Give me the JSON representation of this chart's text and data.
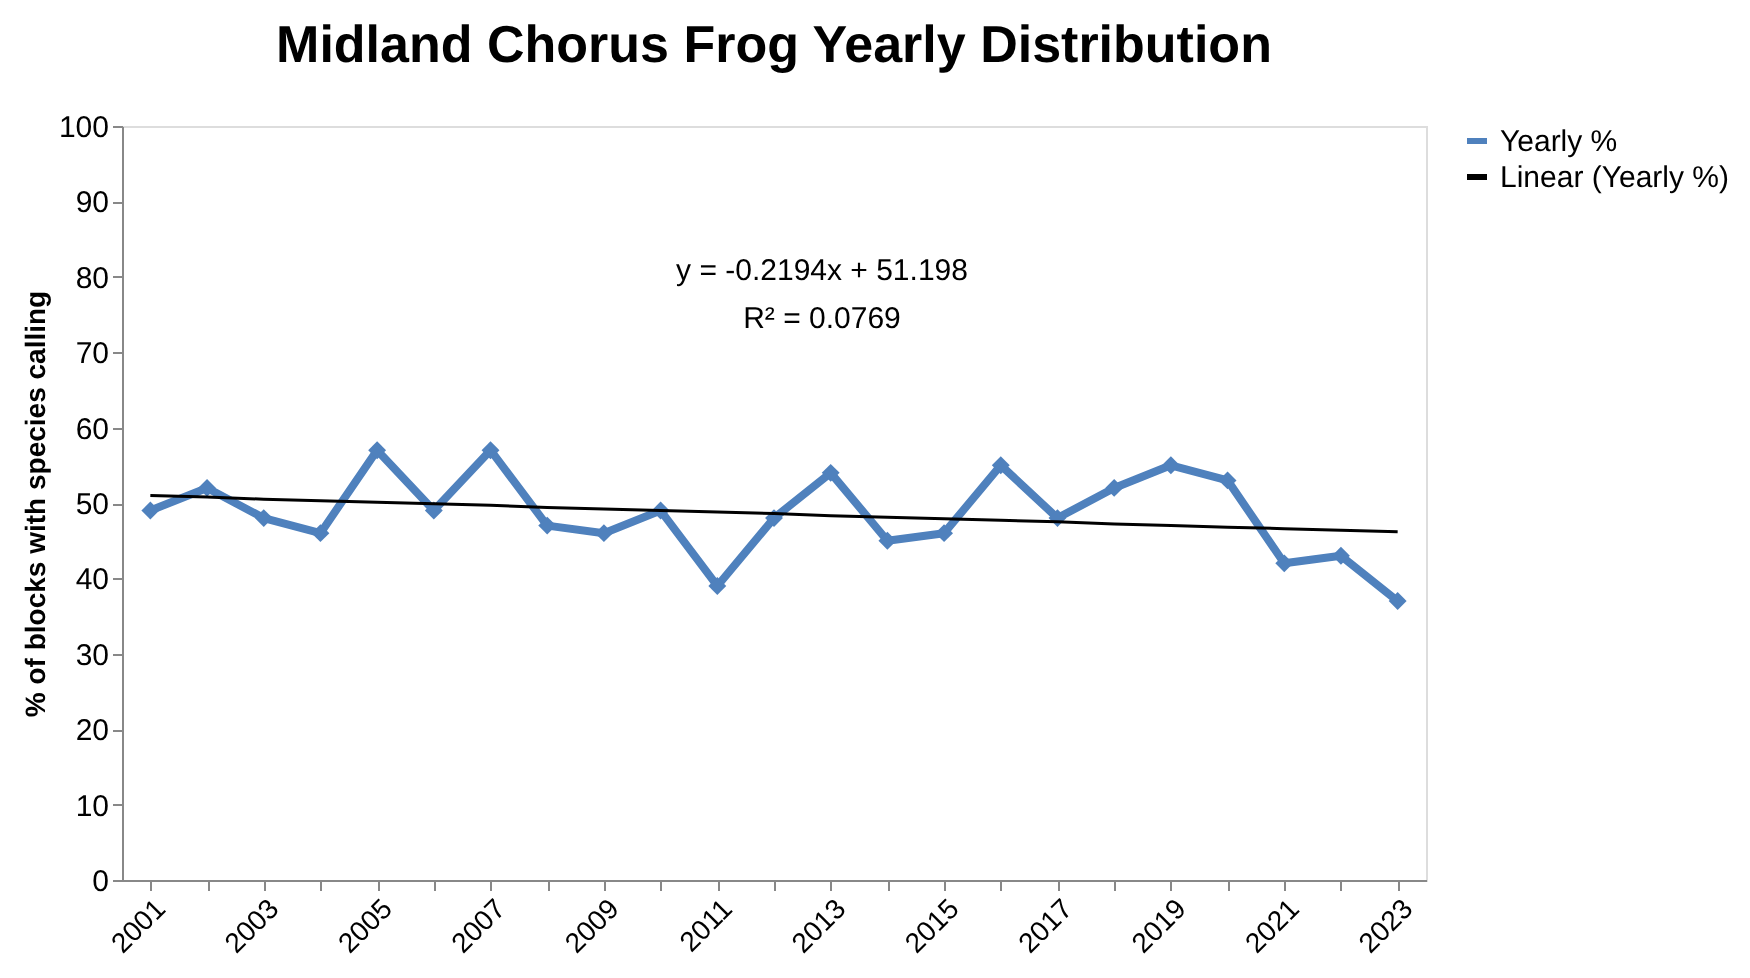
{
  "chart_data": {
    "type": "line",
    "title": "Midland Chorus Frog Yearly Distribution",
    "ylabel": "% of blocks with species calling",
    "categories": [
      "2001",
      null,
      "2003",
      null,
      "2005",
      null,
      "2007",
      null,
      "2009",
      null,
      "2011",
      null,
      "2013",
      null,
      "2015",
      null,
      "2017",
      null,
      "2019",
      null,
      "2021",
      null,
      "2023"
    ],
    "series": [
      {
        "name": "Yearly %",
        "color": "#4f81bd",
        "marker": "diamond",
        "values": [
          49,
          52,
          48,
          46,
          57,
          49,
          57,
          47,
          46,
          49,
          39,
          48,
          54,
          45,
          46,
          55,
          48,
          52,
          55,
          53,
          42,
          43,
          37
        ]
      },
      {
        "name": "Linear (Yearly %)",
        "type": "line",
        "color": "#000000",
        "marker": "none",
        "values": [
          51.0,
          50.8,
          50.5,
          50.3,
          50.1,
          49.9,
          49.7,
          49.4,
          49.2,
          49.0,
          48.8,
          48.6,
          48.3,
          48.1,
          47.9,
          47.7,
          47.5,
          47.2,
          47.0,
          46.8,
          46.6,
          46.4,
          46.2
        ]
      }
    ],
    "annotations": [
      "y = -0.2194x + 51.198",
      "R² = 0.0769"
    ],
    "ylim": [
      0,
      100
    ],
    "yticks": [
      0,
      10,
      20,
      30,
      40,
      50,
      60,
      70,
      80,
      90,
      100
    ],
    "grid": false,
    "legend": "right"
  }
}
